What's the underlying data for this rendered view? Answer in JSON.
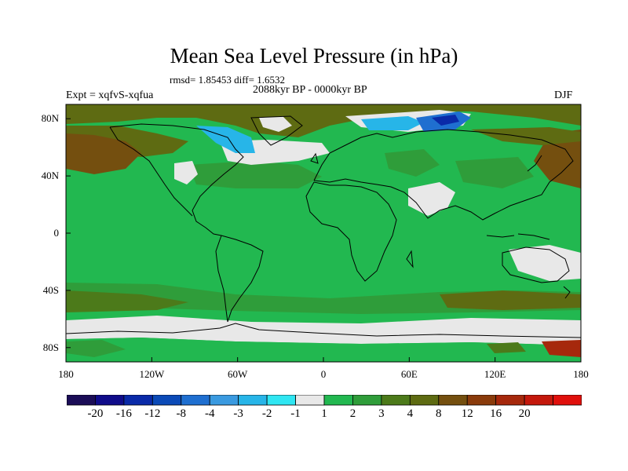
{
  "title": "Mean Sea Level Pressure (in hPa)",
  "stats": "rmsd= 1.85453 diff= 1.6532",
  "experiment": "Expt = xqfvS-xqfua",
  "period": "2088kyr BP - 0000kyr BP",
  "season": "DJF",
  "map": {
    "projection": "cylindrical equidistant",
    "lon_range": [
      -180,
      180
    ],
    "lat_range": [
      -90,
      90
    ],
    "y_ticks": [
      {
        "label": "80N",
        "lat": 80
      },
      {
        "label": "40N",
        "lat": 40
      },
      {
        "label": "0",
        "lat": 0
      },
      {
        "label": "40S",
        "lat": -40
      },
      {
        "label": "80S",
        "lat": -80
      }
    ],
    "x_ticks": [
      {
        "label": "180",
        "lon": -180
      },
      {
        "label": "120W",
        "lon": -120
      },
      {
        "label": "60W",
        "lon": -60
      },
      {
        "label": "0",
        "lon": 0
      },
      {
        "label": "60E",
        "lon": 60
      },
      {
        "label": "120E",
        "lon": 120
      },
      {
        "label": "180",
        "lon": 180
      }
    ]
  },
  "colorbar": {
    "colors": [
      "#1b0d57",
      "#100c8a",
      "#0a2aa8",
      "#0b4ab7",
      "#1f6fd0",
      "#3a9ae0",
      "#27b5e8",
      "#2fe6f2",
      "#e8e8e8",
      "#22b850",
      "#2f9d3a",
      "#4c7a1a",
      "#5e6b12",
      "#744f0f",
      "#8a3b0b",
      "#a6280c",
      "#c4180c",
      "#e0100c"
    ],
    "labels": [
      "-20",
      "-16",
      "-12",
      "-8",
      "-4",
      "-3",
      "-2",
      "-1",
      "1",
      "2",
      "3",
      "4",
      "8",
      "12",
      "16",
      "20"
    ]
  },
  "palette": {
    "green": "#22b850",
    "grey": "#e8e8e8",
    "olive": "#5e6b12",
    "darkolive": "#4c7a1a",
    "brown": "#744f0f",
    "cyan": "#27b5e8",
    "blue": "#1f6fd0",
    "navy": "#0a2aa8"
  }
}
